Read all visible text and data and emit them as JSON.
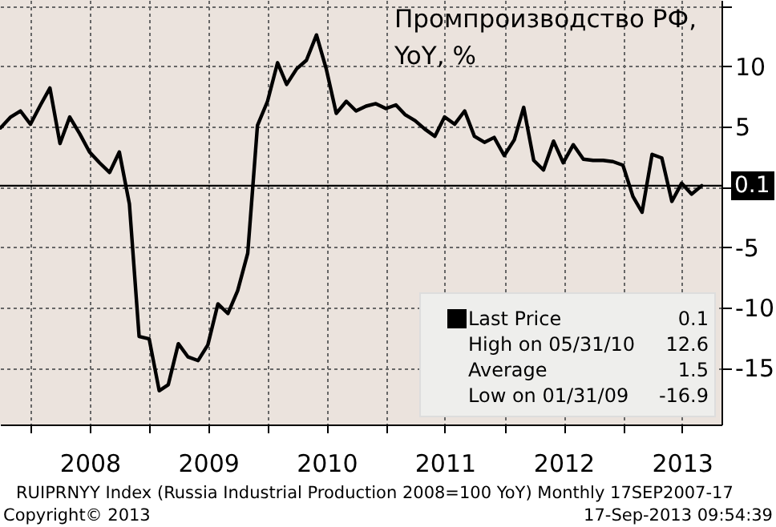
{
  "chart_data": {
    "type": "line",
    "title": "Промпроизводство РФ,\nYoY, %",
    "x": [
      "2007-09-30",
      "2007-10-31",
      "2007-11-30",
      "2007-12-31",
      "2008-01-31",
      "2008-02-29",
      "2008-03-31",
      "2008-04-30",
      "2008-05-31",
      "2008-06-30",
      "2008-07-31",
      "2008-08-31",
      "2008-09-30",
      "2008-10-31",
      "2008-11-30",
      "2008-12-31",
      "2009-01-31",
      "2009-02-28",
      "2009-03-31",
      "2009-04-30",
      "2009-05-31",
      "2009-06-30",
      "2009-07-31",
      "2009-08-31",
      "2009-09-30",
      "2009-10-31",
      "2009-11-30",
      "2009-12-31",
      "2010-01-31",
      "2010-02-28",
      "2010-03-31",
      "2010-04-30",
      "2010-05-31",
      "2010-06-30",
      "2010-07-31",
      "2010-08-31",
      "2010-09-30",
      "2010-10-31",
      "2010-11-30",
      "2010-12-31",
      "2011-01-31",
      "2011-02-28",
      "2011-03-31",
      "2011-04-30",
      "2011-05-31",
      "2011-06-30",
      "2011-07-31",
      "2011-08-31",
      "2011-09-30",
      "2011-10-31",
      "2011-11-30",
      "2011-12-31",
      "2012-01-31",
      "2012-02-29",
      "2012-03-31",
      "2012-04-30",
      "2012-05-31",
      "2012-06-30",
      "2012-07-31",
      "2012-08-31",
      "2012-09-30",
      "2012-10-31",
      "2012-11-30",
      "2012-12-31",
      "2013-01-31",
      "2013-02-28",
      "2013-03-31",
      "2013-04-30",
      "2013-05-31",
      "2013-06-30",
      "2013-07-31",
      "2013-08-31"
    ],
    "series": [
      {
        "name": "Last Price",
        "color": "#000000",
        "values": [
          4.9,
          5.8,
          6.3,
          5.2,
          6.8,
          8.2,
          3.6,
          5.8,
          4.4,
          2.9,
          2.0,
          1.2,
          2.9,
          -1.4,
          -12.4,
          -12.6,
          -16.9,
          -16.4,
          -13.0,
          -14.1,
          -14.4,
          -13.1,
          -9.7,
          -10.5,
          -8.6,
          -5.5,
          5.1,
          7.1,
          10.3,
          8.5,
          9.8,
          10.5,
          12.6,
          9.8,
          6.1,
          7.1,
          6.3,
          6.7,
          6.9,
          6.5,
          6.8,
          6.0,
          5.5,
          4.8,
          4.2,
          5.8,
          5.2,
          6.3,
          4.2,
          3.7,
          4.1,
          2.6,
          3.9,
          6.6,
          2.2,
          1.4,
          3.8,
          2.0,
          3.5,
          2.3,
          2.2,
          2.2,
          2.1,
          1.8,
          -0.8,
          -2.1,
          2.7,
          2.4,
          -1.2,
          0.3,
          -0.6,
          0.1
        ]
      }
    ],
    "xlim": [
      "2007-09-28",
      "2013-10-31"
    ],
    "xticks": [
      {
        "value": "2008-01-01",
        "label": null
      },
      {
        "value": "2008-07-01",
        "label": "2008"
      },
      {
        "value": "2009-01-01",
        "label": null
      },
      {
        "value": "2009-07-01",
        "label": "2009"
      },
      {
        "value": "2010-01-01",
        "label": null
      },
      {
        "value": "2010-07-01",
        "label": "2010"
      },
      {
        "value": "2011-01-01",
        "label": null
      },
      {
        "value": "2011-07-01",
        "label": "2011"
      },
      {
        "value": "2012-01-01",
        "label": null
      },
      {
        "value": "2012-07-01",
        "label": "2012"
      },
      {
        "value": "2013-01-01",
        "label": null
      },
      {
        "value": "2013-07-01",
        "label": "2013"
      }
    ],
    "ylim": [
      -19.7,
      15.5
    ],
    "yticks": [
      -15,
      -10,
      -5,
      {
        "value": 0,
        "label": null
      },
      5,
      10,
      {
        "value": 15,
        "label": null
      }
    ],
    "ref_lines": [
      {
        "axis": "y",
        "value": 0.1,
        "label": "0.1",
        "color": "#000000"
      }
    ],
    "annotations": [
      "High on 05/31/10 12.6",
      "Average 1.5",
      "Low on 01/31/09 -16.9",
      "RUIPRNYY Index (Russia Industrial Production 2008=100 YoY)  Monthly 17SEP2007-17",
      "Copyright© 2013",
      "17-Sep-2013 09:54:39"
    ],
    "grid": true,
    "legend": "bottom right",
    "line_style": "solid",
    "marker": "none"
  }
}
